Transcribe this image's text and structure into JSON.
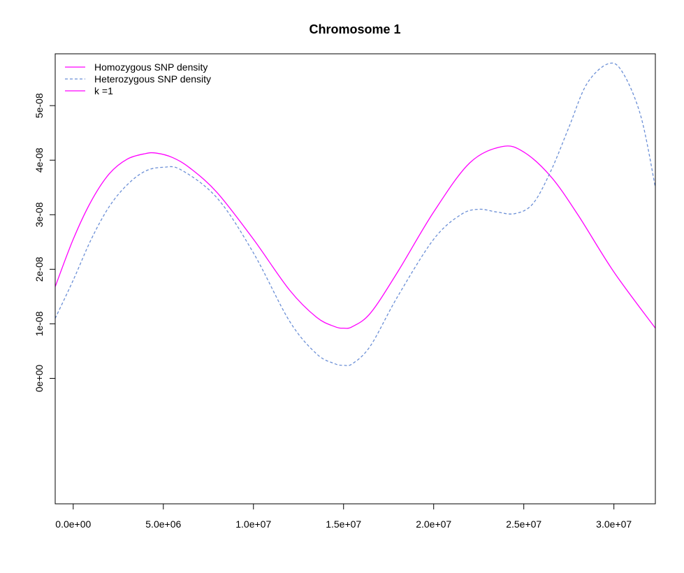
{
  "chart_data": {
    "type": "line",
    "title": "Chromosome 1",
    "xlabel": "",
    "ylabel": "",
    "xlim": [
      -1000000,
      32300000
    ],
    "ylim": [
      -2.3e-08,
      5.95e-08
    ],
    "x_ticks": [
      {
        "value": 0,
        "label": "0.0e+00"
      },
      {
        "value": 5000000,
        "label": "5.0e+06"
      },
      {
        "value": 10000000,
        "label": "1.0e+07"
      },
      {
        "value": 15000000,
        "label": "1.5e+07"
      },
      {
        "value": 20000000,
        "label": "2.0e+07"
      },
      {
        "value": 25000000,
        "label": "2.5e+07"
      },
      {
        "value": 30000000,
        "label": "3.0e+07"
      }
    ],
    "y_ticks": [
      {
        "value": 0,
        "label": "0e+00"
      },
      {
        "value": 1e-08,
        "label": "1e-08"
      },
      {
        "value": 2e-08,
        "label": "2e-08"
      },
      {
        "value": 3e-08,
        "label": "3e-08"
      },
      {
        "value": 4e-08,
        "label": "4e-08"
      },
      {
        "value": 5e-08,
        "label": "5e-08"
      }
    ],
    "grid": false,
    "legend_position": "top-left",
    "legend": [
      {
        "label": "Homozygous SNP density",
        "color": "#ff00ff",
        "dash": "solid"
      },
      {
        "label": "Heterozygous SNP density",
        "color": "#6b8fd6",
        "dash": "dashed"
      },
      {
        "label": "k =1",
        "color": "#ff00ff",
        "dash": "solid"
      }
    ],
    "series": [
      {
        "name": "Homozygous SNP density",
        "color": "#ff00ff",
        "dash": "solid",
        "x": [
          -1000000,
          0,
          1000000,
          2000000,
          3000000,
          4000000,
          4600000,
          5500000,
          6500000,
          8000000,
          10000000,
          12000000,
          13500000,
          14500000,
          15000000,
          15500000,
          16500000,
          18000000,
          20000000,
          22000000,
          23800000,
          25000000,
          26500000,
          28000000,
          30000000,
          32300000
        ],
        "y": [
          1.68e-08,
          2.55e-08,
          3.25e-08,
          3.75e-08,
          4.02e-08,
          4.12e-08,
          4.13e-08,
          4.05e-08,
          3.85e-08,
          3.4e-08,
          2.55e-08,
          1.62e-08,
          1.12e-08,
          9.5e-09,
          9.2e-09,
          9.5e-09,
          1.2e-08,
          1.95e-08,
          3.05e-08,
          3.95e-08,
          4.25e-08,
          4.15e-08,
          3.7e-08,
          3e-08,
          1.95e-08,
          9.2e-09
        ]
      },
      {
        "name": "Heterozygous SNP density",
        "color": "#6b8fd6",
        "dash": "dashed",
        "x": [
          -1000000,
          0,
          1000000,
          2000000,
          3000000,
          4000000,
          5000000,
          6000000,
          8000000,
          10000000,
          12000000,
          13500000,
          14500000,
          15000000,
          15500000,
          16500000,
          18000000,
          20000000,
          21500000,
          22500000,
          23500000,
          24500000,
          25500000,
          26500000,
          27500000,
          28500000,
          29700000,
          30500000,
          31500000,
          32300000
        ],
        "y": [
          1.1e-08,
          1.8e-08,
          2.55e-08,
          3.15e-08,
          3.55e-08,
          3.8e-08,
          3.87e-08,
          3.82e-08,
          3.3e-08,
          2.3e-08,
          1.05e-08,
          4.5e-09,
          2.7e-09,
          2.4e-09,
          2.7e-09,
          6e-09,
          1.5e-08,
          2.55e-08,
          3e-08,
          3.1e-08,
          3.05e-08,
          3.02e-08,
          3.2e-08,
          3.8e-08,
          4.6e-08,
          5.4e-08,
          5.77e-08,
          5.6e-08,
          4.8e-08,
          3.5e-08
        ]
      }
    ]
  }
}
